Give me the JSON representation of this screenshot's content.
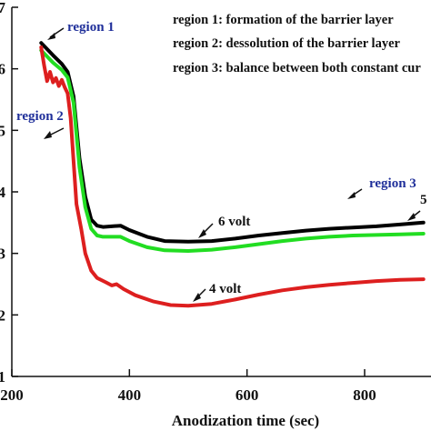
{
  "chart_data": {
    "type": "line",
    "xlabel": "Anodization time (sec)",
    "ylabel": "",
    "xlim": [
      200,
      910
    ],
    "ylim": [
      1,
      7
    ],
    "x_ticks": [
      200,
      400,
      600,
      800
    ],
    "y_ticks": [
      1,
      2,
      3,
      4,
      5,
      6,
      7
    ],
    "y_tick_labels": [
      "1",
      "2",
      "3",
      "4",
      "5",
      "6",
      "7"
    ],
    "grid": false,
    "notes": [
      "region 1: formation of the barrier layer",
      "region 2: dessolution of the barrier layer",
      "region 3: balance between both constant cur"
    ],
    "region_labels": [
      "region 1",
      "region 2",
      "region 3"
    ],
    "series": [
      {
        "name": "6 volt",
        "color": "#000000",
        "x": [
          250,
          270,
          285,
          295,
          305,
          315,
          325,
          335,
          345,
          355,
          370,
          385,
          400,
          430,
          460,
          500,
          540,
          580,
          620,
          660,
          700,
          740,
          780,
          820,
          860,
          900
        ],
        "y": [
          6.42,
          6.22,
          6.08,
          5.95,
          5.55,
          4.55,
          3.92,
          3.55,
          3.45,
          3.43,
          3.44,
          3.45,
          3.38,
          3.27,
          3.2,
          3.19,
          3.2,
          3.24,
          3.29,
          3.33,
          3.37,
          3.4,
          3.42,
          3.44,
          3.47,
          3.5
        ]
      },
      {
        "name": "5",
        "color": "#22dd22",
        "x": [
          250,
          270,
          285,
          295,
          305,
          315,
          325,
          335,
          345,
          355,
          370,
          385,
          400,
          430,
          460,
          500,
          540,
          580,
          620,
          660,
          700,
          740,
          780,
          820,
          860,
          900
        ],
        "y": [
          6.3,
          6.1,
          5.98,
          5.86,
          5.45,
          4.4,
          3.75,
          3.4,
          3.29,
          3.27,
          3.27,
          3.27,
          3.2,
          3.1,
          3.05,
          3.04,
          3.06,
          3.1,
          3.15,
          3.2,
          3.24,
          3.27,
          3.29,
          3.3,
          3.31,
          3.32
        ]
      },
      {
        "name": "4 volt",
        "color": "#dd1f1f",
        "x": [
          250,
          255,
          260,
          265,
          270,
          275,
          280,
          285,
          290,
          295,
          300,
          305,
          310,
          318,
          325,
          335,
          345,
          360,
          370,
          378,
          390,
          410,
          440,
          470,
          500,
          540,
          580,
          620,
          660,
          700,
          740,
          780,
          820,
          860,
          900
        ],
        "y": [
          6.35,
          6.05,
          5.8,
          5.95,
          5.78,
          5.85,
          5.72,
          5.82,
          5.7,
          5.6,
          5.2,
          4.5,
          3.8,
          3.4,
          3.0,
          2.72,
          2.6,
          2.53,
          2.48,
          2.5,
          2.42,
          2.32,
          2.22,
          2.16,
          2.15,
          2.18,
          2.25,
          2.33,
          2.4,
          2.45,
          2.49,
          2.52,
          2.55,
          2.57,
          2.58
        ]
      }
    ]
  },
  "annotations": {
    "region1": "region 1",
    "region2": "region 2",
    "region3": "region 3",
    "legend_line1": "region 1: formation of the barrier layer",
    "legend_line2": "region 2: dessolution of the barrier layer",
    "legend_line3": "region 3: balance between both constant cur",
    "label_6volt": "6 volt",
    "label_5": "5",
    "label_4volt": "4 volt"
  }
}
